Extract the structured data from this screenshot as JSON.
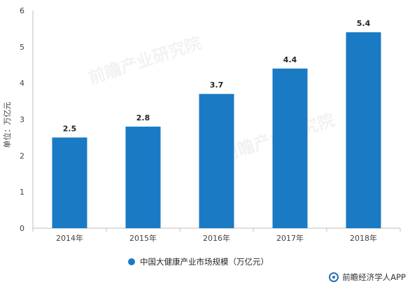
{
  "chart_data": {
    "type": "bar",
    "categories": [
      "2014年",
      "2015年",
      "2016年",
      "2017年",
      "2018年"
    ],
    "series": [
      {
        "name": "中国大健康产业市场规模（万亿元）",
        "values": [
          2.5,
          2.8,
          3.7,
          4.4,
          5.4
        ]
      }
    ],
    "data_labels": [
      "2.5",
      "2.8",
      "3.7",
      "4.4",
      "5.4"
    ],
    "ylabel": "单位：万亿元",
    "xlabel": "",
    "ylim": [
      0,
      6
    ],
    "yticks": [
      0,
      1,
      2,
      3,
      4,
      5,
      6
    ],
    "grid": false,
    "legend_position": "bottom",
    "colors": {
      "bar": "#1a7ac4",
      "axis": "#bfbfbf"
    }
  },
  "legend": {
    "label": "中国大健康产业市场规模（万亿元）"
  },
  "footer": {
    "text": "前瞻经济学人APP"
  },
  "watermark": {
    "text": "前瞻产业研究院"
  }
}
